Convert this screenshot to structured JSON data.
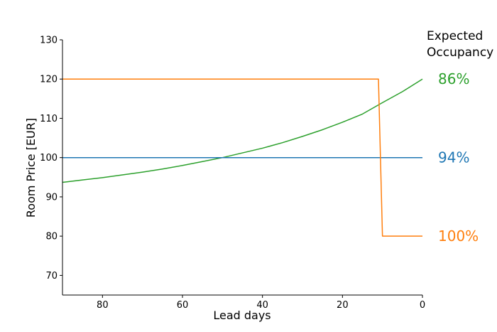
{
  "chart_data": {
    "type": "line",
    "xlabel": "Lead days",
    "ylabel": "Room Price [EUR]",
    "xlim": [
      90,
      0
    ],
    "ylim": [
      65,
      130
    ],
    "x_ticks": [
      80,
      60,
      40,
      20,
      0
    ],
    "y_ticks": [
      70,
      80,
      90,
      100,
      110,
      120,
      130
    ],
    "grid": false,
    "legend_title": [
      "Expected",
      "Occupancy"
    ],
    "series": [
      {
        "label": "86%",
        "color": "#2ca02c",
        "points": [
          [
            90,
            93.7
          ],
          [
            85,
            94.3
          ],
          [
            80,
            94.9
          ],
          [
            75,
            95.6
          ],
          [
            70,
            96.3
          ],
          [
            65,
            97.1
          ],
          [
            60,
            98.0
          ],
          [
            55,
            99.0
          ],
          [
            50,
            100.0
          ],
          [
            45,
            101.2
          ],
          [
            40,
            102.4
          ],
          [
            35,
            103.8
          ],
          [
            30,
            105.4
          ],
          [
            25,
            107.1
          ],
          [
            20,
            109.0
          ],
          [
            15,
            111.1
          ],
          [
            10,
            114.0
          ],
          [
            5,
            116.8
          ],
          [
            0,
            120.0
          ]
        ]
      },
      {
        "label": "94%",
        "color": "#1f77b4",
        "points": [
          [
            90,
            100
          ],
          [
            0,
            100
          ]
        ]
      },
      {
        "label": "100%",
        "color": "#ff7f0e",
        "points": [
          [
            90,
            120
          ],
          [
            11,
            120
          ],
          [
            10,
            80
          ],
          [
            0,
            80
          ]
        ]
      }
    ]
  }
}
